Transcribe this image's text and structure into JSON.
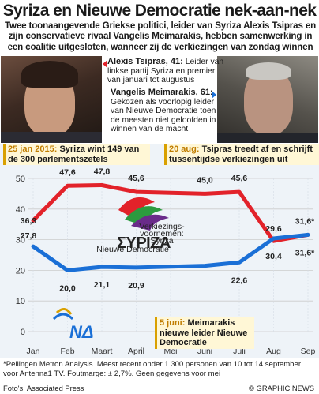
{
  "title": "Syriza en Nieuwe Democratie nek-aan-nek",
  "subtitle": "Twee toonaangevende Griekse politici, leider van Syriza Alexis Tsipras en zijn conservatieve rivaal Vangelis Meimarakis, hebben samenwerking in een coalitie uitgesloten, wanneer zij de verkiezingen van zondag winnen",
  "bios": {
    "tsipras_name": "Alexis Tsipras, 41:",
    "tsipras_text": "Leider van linkse partij Syriza en premier van januari tot augustus",
    "meimarakis_name": "Vangelis Meimarakis, 61:",
    "meimarakis_text": "Gekozen als voorlopig leider van Nieuwe Democratie toen de meesten niet geloofden in winnen van de macht"
  },
  "annotations": {
    "jan_date": "25 jan 2015:",
    "jan_text": "Syriza wint 149 van de 300 parlementszetels",
    "aug_date": "20 aug:",
    "aug_text": "Tsipras treedt af en schrijft tussentijdse verkiezingen uit",
    "jun_date": "5 juni:",
    "jun_text": "Meimarakis nieuwe leider Nieuwe Democratie"
  },
  "colors": {
    "syriza": "#e2222a",
    "nd": "#1a6fd6",
    "accent": "#d9a000",
    "grid": "#cccccc"
  },
  "chart_data": {
    "type": "line",
    "categories": [
      "Jan",
      "Feb",
      "Maart",
      "April",
      "Mei",
      "Juni",
      "Juli",
      "Aug",
      "Sep"
    ],
    "ylim": [
      0,
      50
    ],
    "yticks": [
      0,
      10,
      20,
      30,
      40,
      50
    ],
    "grid": true,
    "series": [
      {
        "name": "Syriza",
        "values": [
          36.3,
          47.6,
          47.8,
          45.6,
          null,
          45.0,
          45.6,
          29.6,
          31.6
        ],
        "labels": [
          "36,3",
          "47,6",
          "47,8",
          "45,6",
          "",
          "45,0",
          "45,6",
          "29,6",
          "31,6*"
        ]
      },
      {
        "name": "Nieuwe Democratie",
        "values": [
          27.8,
          20.0,
          21.1,
          20.9,
          null,
          21.5,
          22.6,
          30.4,
          31.6
        ],
        "labels": [
          "27,8",
          "20,0",
          "21,1",
          "20,9",
          "",
          "",
          "22,6",
          "30,4",
          "31,6*"
        ]
      }
    ],
    "series_label_syriza": "Verkiezings-voornemen: Syriza",
    "series_label_nd": "Nieuwe Democratie"
  },
  "footnote": "*Peilingen Metron Analysis. Meest recent onder 1.300 personen van 10 tot 14 september voor Antenna1 TV. Foutmarge: ± 2,7%. Geen gegevens voor mei",
  "source": "Foto's: Associated Press",
  "credit": "© GRAPHIC NEWS"
}
